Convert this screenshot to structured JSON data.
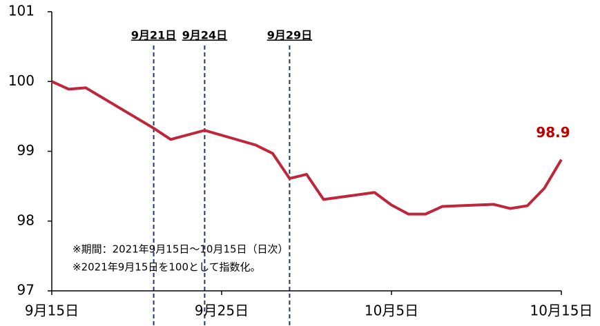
{
  "chart_data": {
    "type": "line",
    "x": [
      "09-15",
      "09-16",
      "09-17",
      "09-21",
      "09-22",
      "09-24",
      "09-27",
      "09-28",
      "09-29",
      "09-30",
      "10-01",
      "10-04",
      "10-05",
      "10-06",
      "10-07",
      "10-08",
      "10-11",
      "10-12",
      "10-13",
      "10-14",
      "10-15"
    ],
    "values": [
      100.0,
      99.89,
      99.91,
      99.33,
      99.17,
      99.3,
      99.09,
      98.97,
      98.61,
      98.67,
      98.31,
      98.41,
      98.23,
      98.1,
      98.1,
      98.21,
      98.24,
      98.18,
      98.22,
      98.47,
      98.88
    ],
    "value_labels": [
      null,
      null,
      null,
      null,
      null,
      null,
      null,
      null,
      null,
      null,
      null,
      null,
      null,
      null,
      null,
      null,
      null,
      null,
      null,
      null,
      "98.9"
    ],
    "color": "#c0263a",
    "label_color": "#c00000",
    "ylim": [
      97,
      101
    ],
    "yticks": [
      97,
      98,
      99,
      100,
      101
    ],
    "xlim": [
      "09-15",
      "10-15"
    ],
    "xticks": [
      {
        "value": "09-15",
        "label": "9月15日"
      },
      {
        "value": "09-25",
        "label": "9月25日"
      },
      {
        "value": "10-05",
        "label": "10月5日"
      },
      {
        "value": "10-15",
        "label": "10月15日"
      }
    ],
    "markers": [
      {
        "x": "09-21",
        "label": "9月21日"
      },
      {
        "x": "09-24",
        "label": "9月24日"
      },
      {
        "x": "09-29",
        "label": "9月29日"
      }
    ],
    "marker_color": "#1f3864",
    "notes": [
      "※期間：2021年9月15日～10月15日（日次）",
      "※2021年9月15日を100として指数化。"
    ]
  }
}
